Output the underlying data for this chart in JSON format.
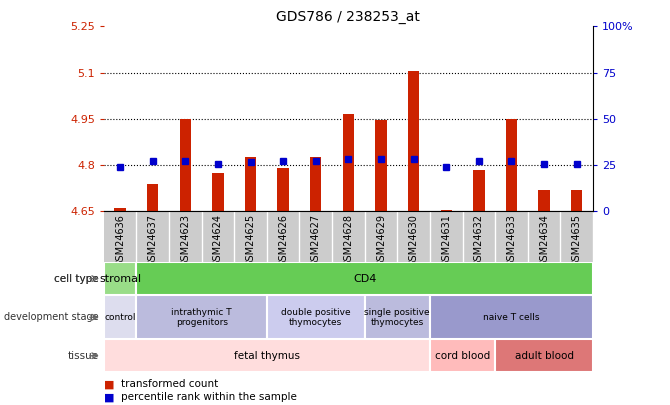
{
  "title": "GDS786 / 238253_at",
  "samples": [
    "GSM24636",
    "GSM24637",
    "GSM24623",
    "GSM24624",
    "GSM24625",
    "GSM24626",
    "GSM24627",
    "GSM24628",
    "GSM24629",
    "GSM24630",
    "GSM24631",
    "GSM24632",
    "GSM24633",
    "GSM24634",
    "GSM24635"
  ],
  "bar_values": [
    4.66,
    4.74,
    4.95,
    4.775,
    4.825,
    4.79,
    4.825,
    4.965,
    4.945,
    5.105,
    4.655,
    4.785,
    4.95,
    4.72,
    4.72
  ],
  "dot_values": [
    4.795,
    4.815,
    4.815,
    4.805,
    4.81,
    4.815,
    4.815,
    4.82,
    4.82,
    4.82,
    4.795,
    4.815,
    4.815,
    4.805,
    4.805
  ],
  "ylim": [
    4.65,
    5.25
  ],
  "yticks_left": [
    4.65,
    4.8,
    4.95,
    5.1,
    5.25
  ],
  "yticks_right": [
    0,
    25,
    50,
    75,
    100
  ],
  "bar_color": "#CC2200",
  "dot_color": "#0000CC",
  "cell_type_labels": [
    {
      "text": "stromal",
      "start": 0,
      "end": 1,
      "color": "#99DD88"
    },
    {
      "text": "CD4",
      "start": 1,
      "end": 15,
      "color": "#66CC55"
    }
  ],
  "dev_stage_labels": [
    {
      "text": "control",
      "start": 0,
      "end": 1,
      "color": "#DDDDEE"
    },
    {
      "text": "intrathymic T\nprogenitors",
      "start": 1,
      "end": 5,
      "color": "#BBBBDD"
    },
    {
      "text": "double positive\nthymocytes",
      "start": 5,
      "end": 8,
      "color": "#CCCCEE"
    },
    {
      "text": "single positive\nthymocytes",
      "start": 8,
      "end": 10,
      "color": "#BBBBDD"
    },
    {
      "text": "naive T cells",
      "start": 10,
      "end": 15,
      "color": "#9999CC"
    }
  ],
  "tissue_labels": [
    {
      "text": "fetal thymus",
      "start": 0,
      "end": 10,
      "color": "#FFDDDD"
    },
    {
      "text": "cord blood",
      "start": 10,
      "end": 12,
      "color": "#FFBBBB"
    },
    {
      "text": "adult blood",
      "start": 12,
      "end": 15,
      "color": "#DD7777"
    }
  ],
  "hgrid_vals": [
    4.8,
    4.95,
    5.1
  ],
  "legend_items": [
    {
      "label": "transformed count",
      "color": "#CC2200"
    },
    {
      "label": "percentile rank within the sample",
      "color": "#0000CC"
    }
  ]
}
